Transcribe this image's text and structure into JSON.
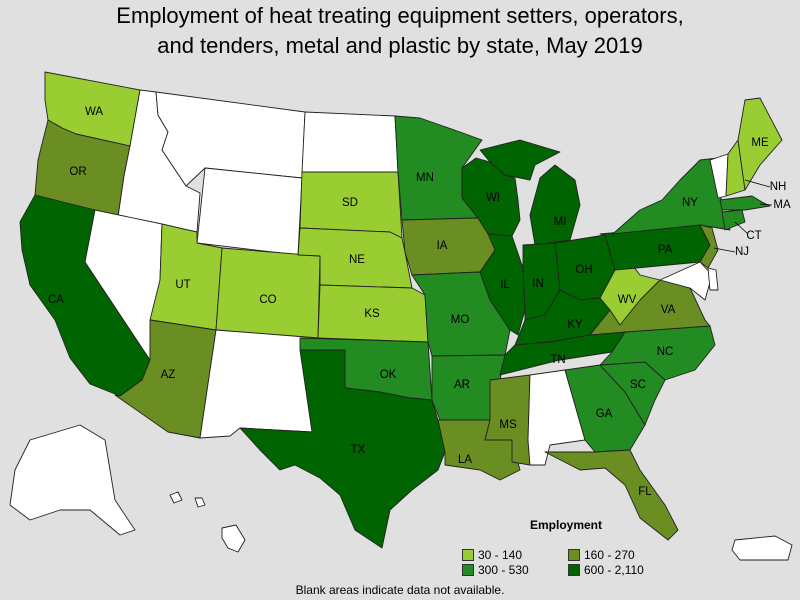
{
  "title_lines": [
    "Employment of heat treating equipment setters, operators,",
    "and tenders, metal and plastic by state, May 2019"
  ],
  "legend": {
    "title": "Employment",
    "items": [
      {
        "label": "30 - 140",
        "color": "#9acd32"
      },
      {
        "label": "160 - 270",
        "color": "#6b8e23"
      },
      {
        "label": "300 - 530",
        "color": "#228b22"
      },
      {
        "label": "600 - 2,110",
        "color": "#006400"
      }
    ]
  },
  "no_data_color": "#ffffff",
  "footnote": "Blank areas indicate data not available.",
  "states": [
    {
      "code": "WA",
      "label": "WA",
      "tier": 0
    },
    {
      "code": "OR",
      "label": "OR",
      "tier": 1
    },
    {
      "code": "CA",
      "label": "CA",
      "tier": 3
    },
    {
      "code": "ID",
      "label": "",
      "tier": null
    },
    {
      "code": "NV",
      "label": "",
      "tier": null
    },
    {
      "code": "MT",
      "label": "",
      "tier": null
    },
    {
      "code": "WY",
      "label": "",
      "tier": null
    },
    {
      "code": "UT",
      "label": "UT",
      "tier": 0
    },
    {
      "code": "AZ",
      "label": "AZ",
      "tier": 1
    },
    {
      "code": "CO",
      "label": "CO",
      "tier": 0
    },
    {
      "code": "NM",
      "label": "",
      "tier": null
    },
    {
      "code": "ND",
      "label": "",
      "tier": null
    },
    {
      "code": "SD",
      "label": "SD",
      "tier": 0
    },
    {
      "code": "NE",
      "label": "NE",
      "tier": 0
    },
    {
      "code": "KS",
      "label": "KS",
      "tier": 0
    },
    {
      "code": "OK",
      "label": "OK",
      "tier": 2
    },
    {
      "code": "TX",
      "label": "TX",
      "tier": 3
    },
    {
      "code": "MN",
      "label": "MN",
      "tier": 2
    },
    {
      "code": "IA",
      "label": "IA",
      "tier": 1
    },
    {
      "code": "MO",
      "label": "MO",
      "tier": 2
    },
    {
      "code": "AR",
      "label": "AR",
      "tier": 2
    },
    {
      "code": "LA",
      "label": "LA",
      "tier": 1
    },
    {
      "code": "WI",
      "label": "WI",
      "tier": 3
    },
    {
      "code": "IL",
      "label": "IL",
      "tier": 3
    },
    {
      "code": "MI",
      "label": "MI",
      "tier": 3
    },
    {
      "code": "IN",
      "label": "IN",
      "tier": 3
    },
    {
      "code": "OH",
      "label": "OH",
      "tier": 3
    },
    {
      "code": "KY",
      "label": "KY",
      "tier": 3
    },
    {
      "code": "TN",
      "label": "TN",
      "tier": 3
    },
    {
      "code": "MS",
      "label": "MS",
      "tier": 1
    },
    {
      "code": "AL",
      "label": "",
      "tier": null
    },
    {
      "code": "GA",
      "label": "GA",
      "tier": 2
    },
    {
      "code": "FL",
      "label": "FL",
      "tier": 1
    },
    {
      "code": "SC",
      "label": "SC",
      "tier": 2
    },
    {
      "code": "NC",
      "label": "NC",
      "tier": 2
    },
    {
      "code": "VA",
      "label": "VA",
      "tier": 1
    },
    {
      "code": "WV",
      "label": "WV",
      "tier": 0
    },
    {
      "code": "PA",
      "label": "PA",
      "tier": 3
    },
    {
      "code": "NY",
      "label": "NY",
      "tier": 2
    },
    {
      "code": "NJ",
      "label": "NJ",
      "tier": 1
    },
    {
      "code": "CT",
      "label": "CT",
      "tier": 2
    },
    {
      "code": "MA",
      "label": "MA",
      "tier": 2
    },
    {
      "code": "VT",
      "label": "",
      "tier": null
    },
    {
      "code": "NH",
      "label": "NH",
      "tier": 0
    },
    {
      "code": "ME",
      "label": "ME",
      "tier": 0
    },
    {
      "code": "MD",
      "label": "",
      "tier": null
    },
    {
      "code": "DE",
      "label": "",
      "tier": null
    },
    {
      "code": "AK",
      "label": "",
      "tier": null
    },
    {
      "code": "HI",
      "label": "",
      "tier": null
    },
    {
      "code": "PR",
      "label": "",
      "tier": null
    }
  ]
}
